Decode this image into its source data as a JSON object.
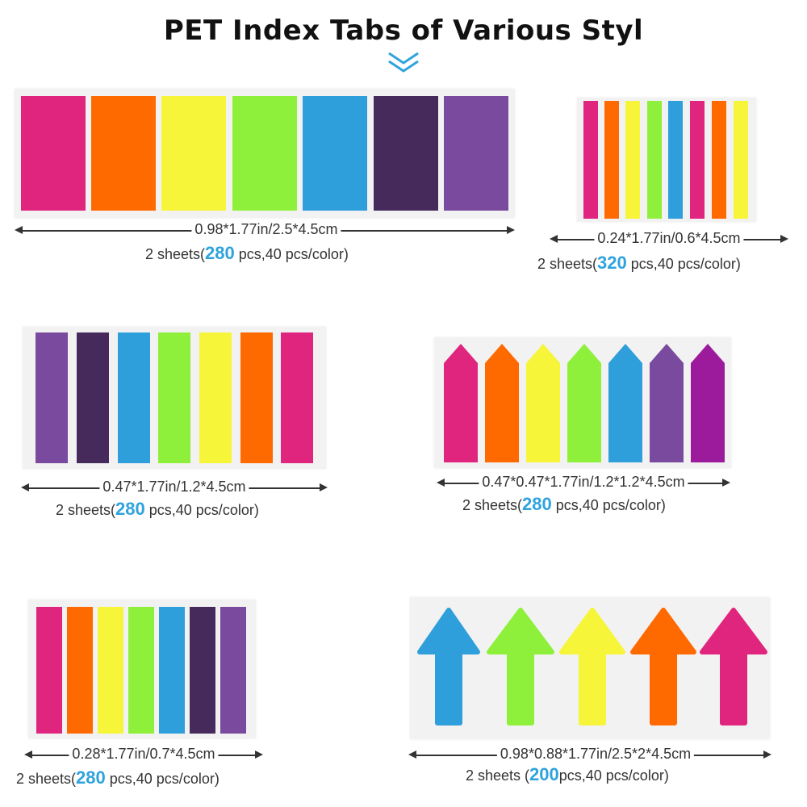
{
  "title": "PET Index Tabs of  Various Styl",
  "colors": {
    "magenta": "#e0257f",
    "orange": "#ff6a00",
    "yellow": "#f6f53a",
    "green": "#8ef03a",
    "blue": "#2f9fdc",
    "darkpurple": "#462a5c",
    "purple": "#7a4a9e",
    "violet": "#9c1b9c"
  },
  "products": [
    {
      "dimension": "0.98*1.77in/2.5*4.5cm",
      "sheets_prefix": "2 sheets(",
      "count": "280",
      "sheets_suffix": " pcs,40 pcs/color)"
    },
    {
      "dimension": "0.24*1.77in/0.6*4.5cm",
      "sheets_prefix": "2 sheets(",
      "count": "320",
      "sheets_suffix": " pcs,40 pcs/color)"
    },
    {
      "dimension": "0.47*1.77in/1.2*4.5cm",
      "sheets_prefix": "2 sheets(",
      "count": "280",
      "sheets_suffix": " pcs,40 pcs/color)"
    },
    {
      "dimension": "0.47*0.47*1.77in/1.2*1.2*4.5cm",
      "sheets_prefix": "2 sheets(",
      "count": "280",
      "sheets_suffix": " pcs,40 pcs/color)"
    },
    {
      "dimension": "0.28*1.77in/0.7*4.5cm",
      "sheets_prefix": "2 sheets(",
      "count": "280",
      "sheets_suffix": " pcs,40 pcs/color)"
    },
    {
      "dimension": "0.98*0.88*1.77in/2.5*2*4.5cm",
      "sheets_prefix": "2 sheets (",
      "count": "200",
      "sheets_suffix": "pcs,40 pcs/color)"
    }
  ]
}
